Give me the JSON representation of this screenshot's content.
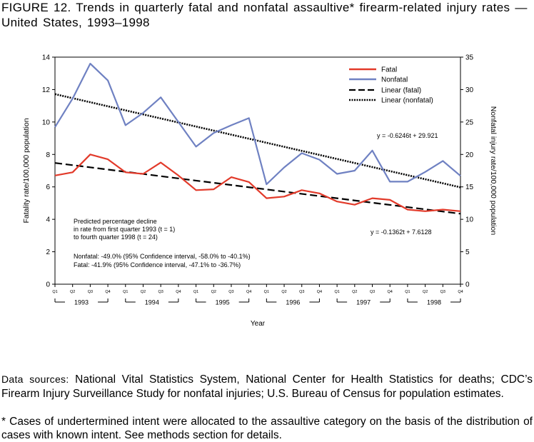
{
  "title": "FIGURE  12. Trends  in  quarterly  fatal  and  nonfatal  assaultive* firearm-related  injury rates  — United  States,  1993–1998",
  "chart_data": {
    "type": "line",
    "xlabel": "Year",
    "ylabel_left": "Fatality rate/100,000 population",
    "ylabel_right": "Nonfatal injury rate/100,000 population",
    "ylim_left": [
      0,
      14
    ],
    "ylim_right": [
      0,
      35
    ],
    "yticks_left": [
      "0",
      "2",
      "4",
      "6",
      "8",
      "10",
      "12",
      "14"
    ],
    "yticks_right": [
      "0",
      "5",
      "10",
      "15",
      "20",
      "25",
      "30",
      "35"
    ],
    "quarter_labels": [
      "Q1",
      "Q2",
      "Q3",
      "Q4"
    ],
    "years": [
      "1993",
      "1994",
      "1995",
      "1996",
      "1997",
      "1998"
    ],
    "legend": [
      "Fatal",
      "Nonfatal",
      "Linear (fatal)",
      "Linear (nonfatal)"
    ],
    "series": [
      {
        "name": "Fatal",
        "axis": "left",
        "color": "#e23a2a",
        "values": [
          6.7,
          6.9,
          8.0,
          7.7,
          6.9,
          6.8,
          7.5,
          6.7,
          5.8,
          5.85,
          6.6,
          6.3,
          5.3,
          5.4,
          5.8,
          5.6,
          5.1,
          4.9,
          5.3,
          5.2,
          4.6,
          4.5,
          4.6,
          4.5
        ]
      },
      {
        "name": "Nonfatal",
        "axis": "right",
        "color": "#6f81c2",
        "values": [
          24.2,
          28.6,
          34.0,
          31.4,
          24.5,
          26.4,
          28.8,
          25.0,
          21.2,
          23.3,
          24.5,
          25.6,
          15.4,
          18.0,
          20.2,
          19.2,
          17.0,
          17.5,
          20.6,
          15.8,
          15.8,
          17.3,
          19.0,
          16.7
        ]
      },
      {
        "name": "Linear (fatal)",
        "axis": "left",
        "style": "dashed",
        "color": "#000000",
        "slope": -0.1362,
        "intercept": 7.6128
      },
      {
        "name": "Linear (nonfatal)",
        "axis": "right",
        "style": "dotted",
        "color": "#000000",
        "slope": -0.6246,
        "intercept": 29.921
      }
    ],
    "annotations": {
      "eq_nonfatal": "y = -0.6246t + 29.921",
      "eq_fatal": "y = -0.1362t + 7.6128",
      "decline_lines": [
        "Predicted percentage decline",
        "in rate from first quarter 1993 (t = 1)",
        "to fourth quarter 1998 (t = 24)"
      ],
      "nonfatal_note": "Nonfatal: -49.0% (95% Confidence interval, -58.0% to -40.1%)",
      "fatal_note": "Fatal: -41.9% (95% Confidence interval, -47.1% to -36.7%)"
    }
  },
  "sources": {
    "lead": "Data sources:",
    "text": "National Vital Statistics System, National Center for Health Statistics for deaths; CDC’s Firearm Injury Surveillance Study for nonfatal injuries; U.S. Bureau of Census for population estimates."
  },
  "footnote": "* Cases of undertermined intent were allocated to the assaultive category on the basis of the distribution of cases with known intent. See methods section for details."
}
